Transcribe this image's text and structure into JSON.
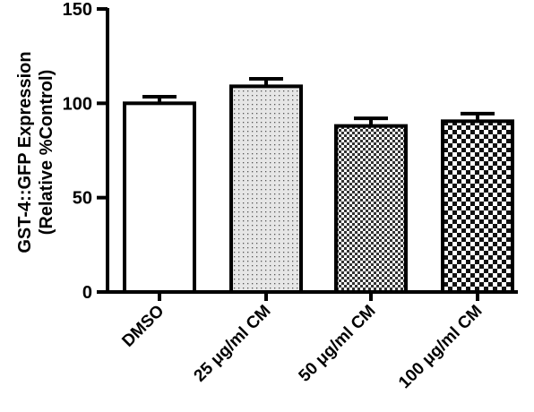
{
  "chart_data": {
    "type": "bar",
    "categories": [
      "DMSO",
      "25 μg/ml CM",
      "50 μg/ml CM",
      "100 μg/ml CM"
    ],
    "values": [
      100,
      109,
      88,
      90.5
    ],
    "errors": [
      3.5,
      4,
      4,
      4
    ],
    "fill_patterns": [
      "solid-white",
      "fine-dots",
      "fine-checker",
      "coarse-checker"
    ],
    "ylabel_line1": "GST-4::GFP Expression",
    "ylabel_line2": "(Relative %Control)",
    "xlabel": "",
    "title": "",
    "ylim": [
      0,
      150
    ],
    "yticks": [
      0,
      50,
      100,
      150
    ],
    "grid": false,
    "legend": "none",
    "colors": {
      "stroke": "#000000",
      "fill": "#ffffff"
    }
  }
}
